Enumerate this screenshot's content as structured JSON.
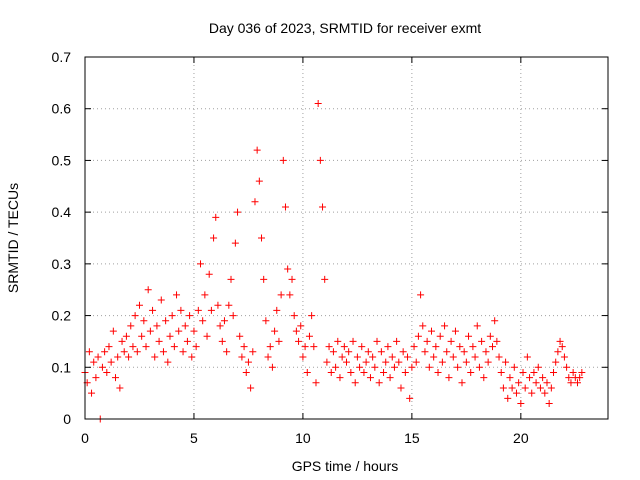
{
  "chart_data": {
    "type": "scatter",
    "title": "Day 036 of 2023, SRMTID for receiver exmt",
    "xlabel": "GPS time / hours",
    "ylabel": "SRMTID / TECUs",
    "xlim": [
      0,
      24
    ],
    "ylim": [
      0,
      0.7
    ],
    "xticks": [
      0,
      5,
      10,
      15,
      20
    ],
    "xtick_labels": [
      "0",
      "5",
      "10",
      "15",
      "20"
    ],
    "yticks": [
      0,
      0.1,
      0.2,
      0.3,
      0.4,
      0.5,
      0.6,
      0.7
    ],
    "ytick_labels": [
      "0",
      "0.1",
      "0.2",
      "0.3",
      "0.4",
      "0.5",
      "0.6",
      "0.7"
    ],
    "grid": true,
    "marker": "+",
    "series_color": "#ff0000",
    "series": [
      {
        "name": "SRMTID",
        "points": [
          [
            0.0,
            0.09
          ],
          [
            0.1,
            0.07
          ],
          [
            0.2,
            0.13
          ],
          [
            0.3,
            0.05
          ],
          [
            0.4,
            0.11
          ],
          [
            0.5,
            0.08
          ],
          [
            0.6,
            0.12
          ],
          [
            0.7,
            0.0
          ],
          [
            0.8,
            0.1
          ],
          [
            0.9,
            0.13
          ],
          [
            1.0,
            0.09
          ],
          [
            1.1,
            0.14
          ],
          [
            1.2,
            0.11
          ],
          [
            1.3,
            0.17
          ],
          [
            1.4,
            0.08
          ],
          [
            1.5,
            0.12
          ],
          [
            1.6,
            0.06
          ],
          [
            1.7,
            0.15
          ],
          [
            1.8,
            0.13
          ],
          [
            1.9,
            0.16
          ],
          [
            2.0,
            0.12
          ],
          [
            2.1,
            0.18
          ],
          [
            2.2,
            0.14
          ],
          [
            2.3,
            0.2
          ],
          [
            2.4,
            0.13
          ],
          [
            2.5,
            0.22
          ],
          [
            2.6,
            0.16
          ],
          [
            2.7,
            0.19
          ],
          [
            2.8,
            0.14
          ],
          [
            2.9,
            0.25
          ],
          [
            3.0,
            0.17
          ],
          [
            3.1,
            0.21
          ],
          [
            3.2,
            0.12
          ],
          [
            3.3,
            0.18
          ],
          [
            3.4,
            0.15
          ],
          [
            3.5,
            0.23
          ],
          [
            3.6,
            0.13
          ],
          [
            3.7,
            0.19
          ],
          [
            3.8,
            0.11
          ],
          [
            3.9,
            0.16
          ],
          [
            4.0,
            0.2
          ],
          [
            4.1,
            0.14
          ],
          [
            4.2,
            0.24
          ],
          [
            4.3,
            0.17
          ],
          [
            4.4,
            0.21
          ],
          [
            4.5,
            0.13
          ],
          [
            4.6,
            0.18
          ],
          [
            4.7,
            0.15
          ],
          [
            4.8,
            0.2
          ],
          [
            4.9,
            0.12
          ],
          [
            5.0,
            0.17
          ],
          [
            5.1,
            0.14
          ],
          [
            5.2,
            0.21
          ],
          [
            5.3,
            0.3
          ],
          [
            5.4,
            0.19
          ],
          [
            5.5,
            0.24
          ],
          [
            5.6,
            0.16
          ],
          [
            5.7,
            0.28
          ],
          [
            5.8,
            0.21
          ],
          [
            5.9,
            0.35
          ],
          [
            6.0,
            0.39
          ],
          [
            6.1,
            0.22
          ],
          [
            6.2,
            0.18
          ],
          [
            6.3,
            0.15
          ],
          [
            6.4,
            0.19
          ],
          [
            6.5,
            0.13
          ],
          [
            6.6,
            0.22
          ],
          [
            6.7,
            0.27
          ],
          [
            6.8,
            0.2
          ],
          [
            6.9,
            0.34
          ],
          [
            7.0,
            0.4
          ],
          [
            7.1,
            0.16
          ],
          [
            7.2,
            0.12
          ],
          [
            7.3,
            0.14
          ],
          [
            7.4,
            0.09
          ],
          [
            7.5,
            0.11
          ],
          [
            7.6,
            0.06
          ],
          [
            7.7,
            0.13
          ],
          [
            7.8,
            0.42
          ],
          [
            7.9,
            0.52
          ],
          [
            8.0,
            0.46
          ],
          [
            8.1,
            0.35
          ],
          [
            8.2,
            0.27
          ],
          [
            8.3,
            0.19
          ],
          [
            8.4,
            0.12
          ],
          [
            8.5,
            0.14
          ],
          [
            8.6,
            0.1
          ],
          [
            8.7,
            0.17
          ],
          [
            8.8,
            0.21
          ],
          [
            8.9,
            0.15
          ],
          [
            9.0,
            0.24
          ],
          [
            9.1,
            0.5
          ],
          [
            9.2,
            0.41
          ],
          [
            9.3,
            0.29
          ],
          [
            9.4,
            0.24
          ],
          [
            9.5,
            0.27
          ],
          [
            9.6,
            0.2
          ],
          [
            9.7,
            0.17
          ],
          [
            9.8,
            0.15
          ],
          [
            9.9,
            0.18
          ],
          [
            10.0,
            0.12
          ],
          [
            10.1,
            0.14
          ],
          [
            10.2,
            0.09
          ],
          [
            10.3,
            0.16
          ],
          [
            10.4,
            0.2
          ],
          [
            10.5,
            0.14
          ],
          [
            10.6,
            0.07
          ],
          [
            10.7,
            0.61
          ],
          [
            10.8,
            0.5
          ],
          [
            10.9,
            0.41
          ],
          [
            11.0,
            0.27
          ],
          [
            11.1,
            0.11
          ],
          [
            11.2,
            0.14
          ],
          [
            11.3,
            0.09
          ],
          [
            11.4,
            0.13
          ],
          [
            11.5,
            0.1
          ],
          [
            11.6,
            0.15
          ],
          [
            11.7,
            0.08
          ],
          [
            11.8,
            0.12
          ],
          [
            11.9,
            0.14
          ],
          [
            12.0,
            0.11
          ],
          [
            12.1,
            0.13
          ],
          [
            12.2,
            0.09
          ],
          [
            12.3,
            0.15
          ],
          [
            12.4,
            0.07
          ],
          [
            12.5,
            0.12
          ],
          [
            12.6,
            0.1
          ],
          [
            12.7,
            0.14
          ],
          [
            12.8,
            0.09
          ],
          [
            12.9,
            0.11
          ],
          [
            13.0,
            0.13
          ],
          [
            13.1,
            0.08
          ],
          [
            13.2,
            0.12
          ],
          [
            13.3,
            0.1
          ],
          [
            13.4,
            0.15
          ],
          [
            13.5,
            0.07
          ],
          [
            13.6,
            0.13
          ],
          [
            13.7,
            0.09
          ],
          [
            13.8,
            0.11
          ],
          [
            13.9,
            0.14
          ],
          [
            14.0,
            0.08
          ],
          [
            14.1,
            0.12
          ],
          [
            14.2,
            0.1
          ],
          [
            14.3,
            0.15
          ],
          [
            14.4,
            0.11
          ],
          [
            14.5,
            0.06
          ],
          [
            14.6,
            0.13
          ],
          [
            14.7,
            0.09
          ],
          [
            14.8,
            0.12
          ],
          [
            14.9,
            0.04
          ],
          [
            15.0,
            0.1
          ],
          [
            15.1,
            0.14
          ],
          [
            15.2,
            0.11
          ],
          [
            15.3,
            0.16
          ],
          [
            15.4,
            0.24
          ],
          [
            15.5,
            0.18
          ],
          [
            15.6,
            0.13
          ],
          [
            15.7,
            0.15
          ],
          [
            15.8,
            0.1
          ],
          [
            15.9,
            0.17
          ],
          [
            16.0,
            0.12
          ],
          [
            16.1,
            0.14
          ],
          [
            16.2,
            0.09
          ],
          [
            16.3,
            0.16
          ],
          [
            16.4,
            0.11
          ],
          [
            16.5,
            0.18
          ],
          [
            16.6,
            0.13
          ],
          [
            16.7,
            0.08
          ],
          [
            16.8,
            0.15
          ],
          [
            16.9,
            0.12
          ],
          [
            17.0,
            0.17
          ],
          [
            17.1,
            0.1
          ],
          [
            17.2,
            0.14
          ],
          [
            17.3,
            0.07
          ],
          [
            17.4,
            0.13
          ],
          [
            17.5,
            0.11
          ],
          [
            17.6,
            0.16
          ],
          [
            17.7,
            0.09
          ],
          [
            17.8,
            0.14
          ],
          [
            17.9,
            0.12
          ],
          [
            18.0,
            0.18
          ],
          [
            18.1,
            0.1
          ],
          [
            18.2,
            0.15
          ],
          [
            18.3,
            0.08
          ],
          [
            18.4,
            0.13
          ],
          [
            18.5,
            0.11
          ],
          [
            18.6,
            0.16
          ],
          [
            18.7,
            0.14
          ],
          [
            18.8,
            0.19
          ],
          [
            18.9,
            0.15
          ],
          [
            19.0,
            0.12
          ],
          [
            19.1,
            0.09
          ],
          [
            19.2,
            0.06
          ],
          [
            19.3,
            0.11
          ],
          [
            19.4,
            0.04
          ],
          [
            19.5,
            0.08
          ],
          [
            19.6,
            0.06
          ],
          [
            19.7,
            0.1
          ],
          [
            19.8,
            0.05
          ],
          [
            19.9,
            0.07
          ],
          [
            20.0,
            0.03
          ],
          [
            20.1,
            0.09
          ],
          [
            20.2,
            0.06
          ],
          [
            20.3,
            0.12
          ],
          [
            20.4,
            0.08
          ],
          [
            20.5,
            0.05
          ],
          [
            20.6,
            0.09
          ],
          [
            20.7,
            0.07
          ],
          [
            20.8,
            0.1
          ],
          [
            20.9,
            0.06
          ],
          [
            21.0,
            0.08
          ],
          [
            21.1,
            0.05
          ],
          [
            21.2,
            0.07
          ],
          [
            21.3,
            0.03
          ],
          [
            21.4,
            0.06
          ],
          [
            21.5,
            0.09
          ],
          [
            21.6,
            0.11
          ],
          [
            21.7,
            0.13
          ],
          [
            21.8,
            0.15
          ],
          [
            21.9,
            0.14
          ],
          [
            22.0,
            0.12
          ],
          [
            22.1,
            0.1
          ],
          [
            22.2,
            0.08
          ],
          [
            22.3,
            0.07
          ],
          [
            22.4,
            0.09
          ],
          [
            22.5,
            0.08
          ],
          [
            22.6,
            0.07
          ],
          [
            22.7,
            0.08
          ],
          [
            22.8,
            0.09
          ]
        ]
      }
    ]
  }
}
